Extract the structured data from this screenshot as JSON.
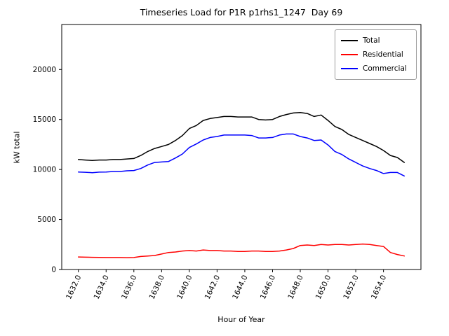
{
  "chart_data": {
    "type": "line",
    "title": "Timeseries Load for P1R p1rhs1_1247  Day 69",
    "xlabel": "Hour of Year",
    "ylabel": "kW total",
    "xlim": [
      1630.8,
      1656.7
    ],
    "ylim": [
      0,
      24500
    ],
    "grid": false,
    "legend_position": "upper right",
    "xticks": [
      1632,
      1634,
      1636,
      1638,
      1640,
      1642,
      1644,
      1646,
      1648,
      1650,
      1652,
      1654
    ],
    "xtick_labels": [
      "1632.0",
      "1634.0",
      "1636.0",
      "1638.0",
      "1640.0",
      "1642.0",
      "1644.0",
      "1646.0",
      "1648.0",
      "1650.0",
      "1652.0",
      "1654.0"
    ],
    "yticks": [
      0,
      5000,
      10000,
      15000,
      20000
    ],
    "ytick_labels": [
      "0",
      "5000",
      "10000",
      "15000",
      "20000"
    ],
    "x": [
      1632.0,
      1632.5,
      1633.0,
      1633.5,
      1634.0,
      1634.5,
      1635.0,
      1635.5,
      1636.0,
      1636.5,
      1637.0,
      1637.5,
      1638.0,
      1638.5,
      1639.0,
      1639.5,
      1640.0,
      1640.5,
      1641.0,
      1641.5,
      1642.0,
      1642.5,
      1643.0,
      1643.5,
      1644.0,
      1644.5,
      1645.0,
      1645.5,
      1646.0,
      1646.5,
      1647.0,
      1647.5,
      1648.0,
      1648.5,
      1649.0,
      1649.5,
      1650.0,
      1650.5,
      1651.0,
      1651.5,
      1652.0,
      1652.5,
      1653.0,
      1653.5,
      1654.0,
      1654.5,
      1655.0,
      1655.5
    ],
    "series": [
      {
        "name": "Total",
        "color": "#000000",
        "values": [
          11000,
          10950,
          10900,
          10950,
          10950,
          11000,
          11000,
          11050,
          11100,
          11400,
          11800,
          12100,
          12300,
          12500,
          12900,
          13400,
          14100,
          14400,
          14900,
          15100,
          15200,
          15300,
          15300,
          15250,
          15250,
          15250,
          15000,
          14950,
          15000,
          15300,
          15500,
          15650,
          15700,
          15600,
          15300,
          15450,
          14900,
          14300,
          14000,
          13500,
          13200,
          12900,
          12600,
          12300,
          11900,
          11400,
          11200,
          10700
        ]
      },
      {
        "name": "Residential",
        "color": "#ff0000",
        "values": [
          1250,
          1230,
          1220,
          1210,
          1200,
          1200,
          1200,
          1180,
          1200,
          1300,
          1350,
          1400,
          1550,
          1700,
          1750,
          1850,
          1900,
          1850,
          1950,
          1900,
          1900,
          1850,
          1850,
          1800,
          1800,
          1850,
          1850,
          1800,
          1800,
          1850,
          1950,
          2100,
          2400,
          2450,
          2400,
          2500,
          2450,
          2500,
          2500,
          2450,
          2500,
          2550,
          2500,
          2400,
          2300,
          1700,
          1500,
          1350
        ]
      },
      {
        "name": "Commercial",
        "color": "#0000ff",
        "values": [
          9750,
          9720,
          9680,
          9740,
          9750,
          9800,
          9800,
          9870,
          9900,
          10100,
          10450,
          10700,
          10750,
          10800,
          11150,
          11550,
          12200,
          12550,
          12950,
          13200,
          13300,
          13450,
          13450,
          13450,
          13450,
          13400,
          13150,
          13150,
          13200,
          13450,
          13550,
          13550,
          13300,
          13150,
          12900,
          12950,
          12450,
          11800,
          11500,
          11050,
          10700,
          10350,
          10100,
          9900,
          9600,
          9700,
          9700,
          9350
        ]
      }
    ]
  }
}
